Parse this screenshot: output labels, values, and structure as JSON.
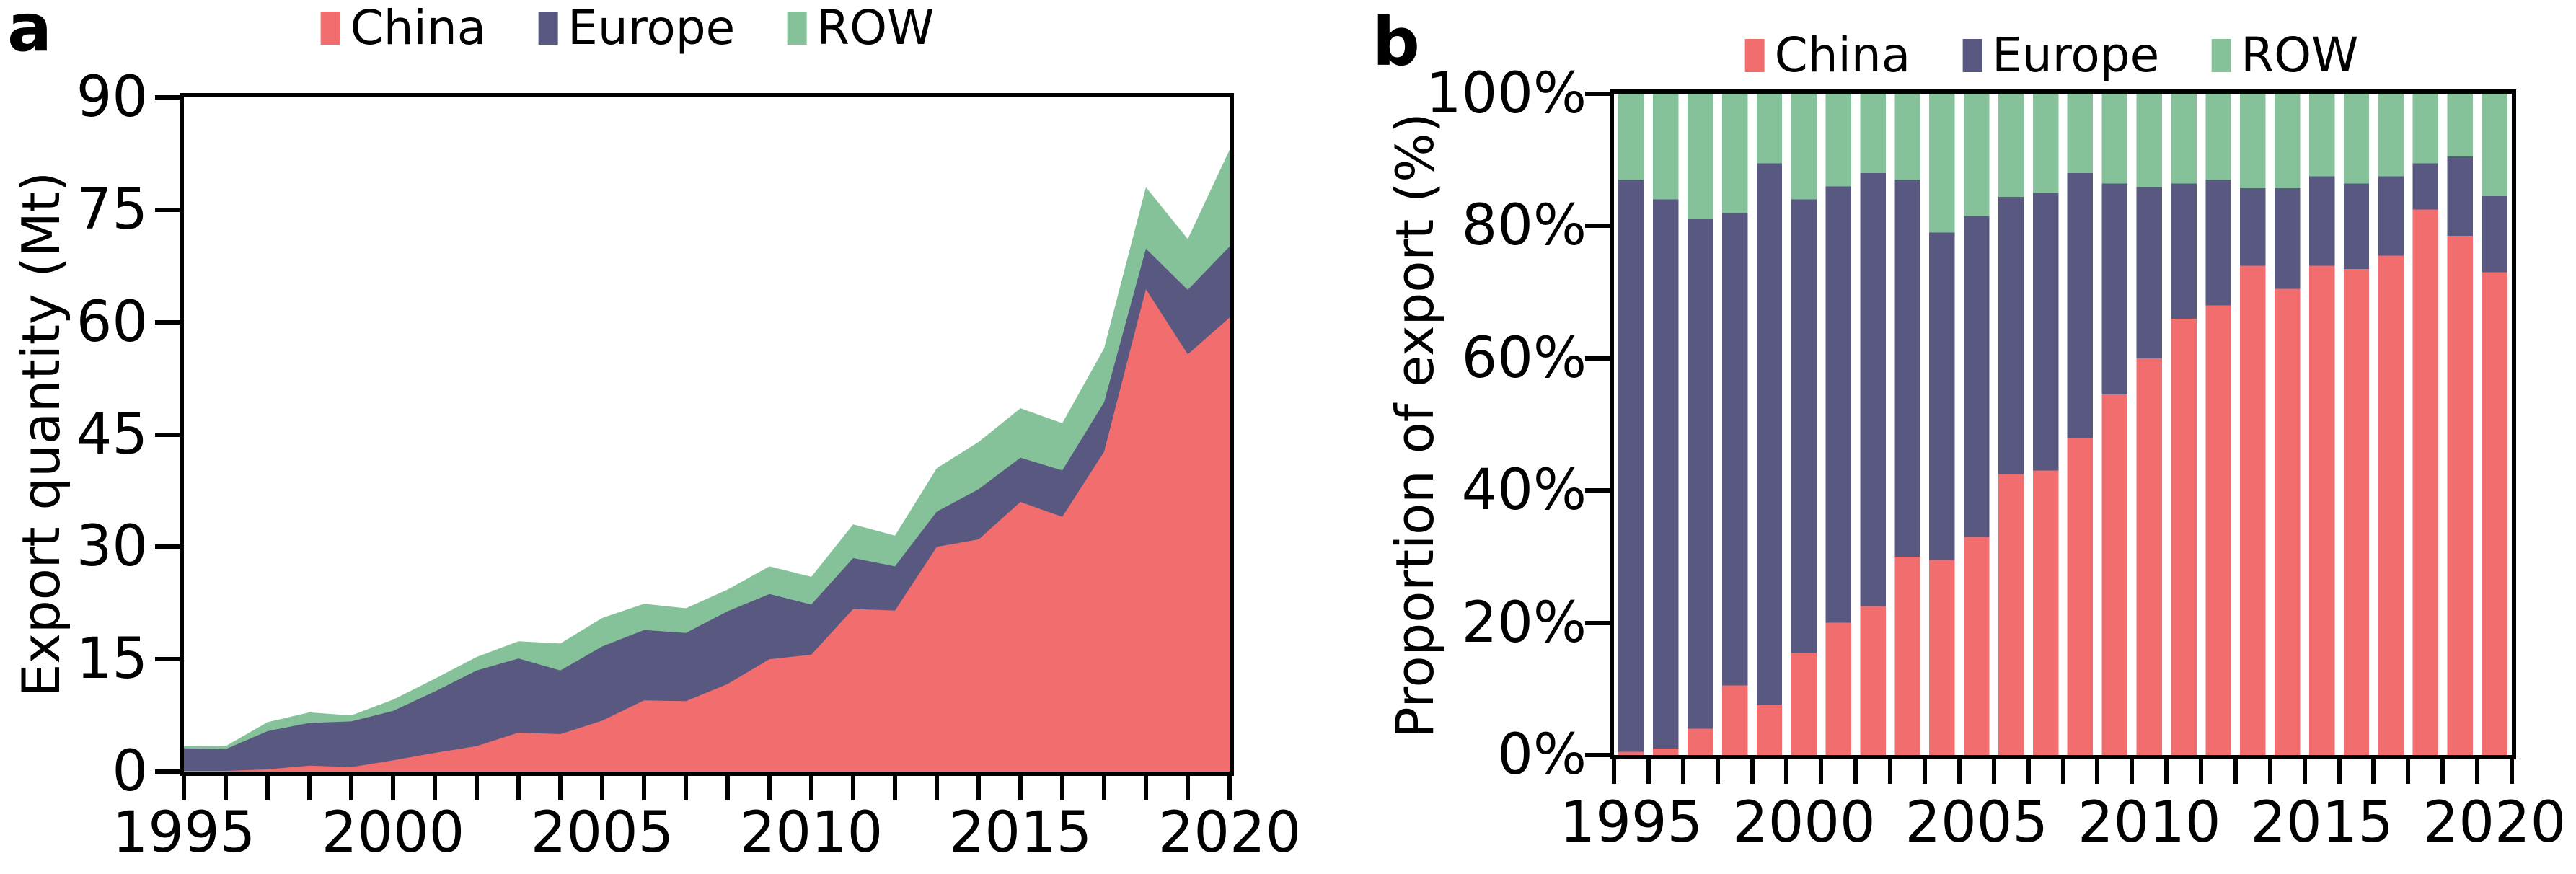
{
  "chart_data": [
    {
      "panel": "a",
      "type": "area",
      "stacked": true,
      "ylabel": "Export quantity (Mt)",
      "x": [
        1995,
        1996,
        1997,
        1998,
        1999,
        2000,
        2001,
        2002,
        2003,
        2004,
        2005,
        2006,
        2007,
        2008,
        2009,
        2010,
        2011,
        2012,
        2013,
        2014,
        2015,
        2016,
        2017,
        2018,
        2019,
        2020
      ],
      "xlim": [
        1995,
        2020
      ],
      "ylim": [
        0,
        90
      ],
      "y_ticks": [
        0,
        15,
        30,
        45,
        60,
        75,
        90
      ],
      "y_tick_labels": [
        "0",
        "15",
        "30",
        "45",
        "60",
        "75",
        "90"
      ],
      "x_tick_label_years": [
        1995,
        2000,
        2005,
        2010,
        2015,
        2020
      ],
      "x_tick_labels": [
        "1995",
        "2000",
        "2005",
        "2010",
        "2015",
        "2020"
      ],
      "grid": false,
      "legend_position": "top",
      "series": [
        {
          "name": "China",
          "color": "#F26E6E",
          "values": [
            0.1,
            0.1,
            0.3,
            0.8,
            0.6,
            1.5,
            2.5,
            3.4,
            5.2,
            5.0,
            6.8,
            9.5,
            9.4,
            11.7,
            15.0,
            15.6,
            21.7,
            21.5,
            30.0,
            31.0,
            36.0,
            34.0,
            42.7,
            64.4,
            55.7,
            60.6
          ]
        },
        {
          "name": "Europe",
          "color": "#585881",
          "values": [
            3.0,
            2.9,
            5.1,
            5.7,
            6.1,
            6.6,
            8.2,
            10.1,
            9.9,
            8.5,
            9.9,
            9.4,
            9.1,
            9.7,
            8.7,
            6.7,
            6.8,
            5.9,
            4.7,
            6.7,
            5.9,
            6.2,
            6.6,
            5.4,
            8.6,
            9.5
          ]
        },
        {
          "name": "ROW",
          "color": "#85C29A",
          "values": [
            0.3,
            0.4,
            1.2,
            1.4,
            0.8,
            1.5,
            1.7,
            1.8,
            2.3,
            3.6,
            3.8,
            3.5,
            3.3,
            2.9,
            3.7,
            3.7,
            4.5,
            4.1,
            5.8,
            6.3,
            6.6,
            6.3,
            7.2,
            8.2,
            6.8,
            12.9
          ]
        }
      ]
    },
    {
      "panel": "b",
      "type": "bar",
      "stacked": true,
      "normalized": true,
      "ylabel": "Proportion of export (%)",
      "x": [
        1995,
        1996,
        1997,
        1998,
        1999,
        2000,
        2001,
        2002,
        2003,
        2004,
        2005,
        2006,
        2007,
        2008,
        2009,
        2010,
        2011,
        2012,
        2013,
        2014,
        2015,
        2016,
        2017,
        2018,
        2019,
        2020
      ],
      "ylim": [
        0,
        100
      ],
      "y_ticks": [
        0,
        20,
        40,
        60,
        80,
        100
      ],
      "y_tick_labels": [
        "0%",
        "20%",
        "40%",
        "60%",
        "80%",
        "100%"
      ],
      "x_tick_label_years": [
        1995,
        2000,
        2005,
        2010,
        2015,
        2020
      ],
      "x_tick_labels": [
        "1995",
        "2000",
        "2005",
        "2010",
        "2015",
        "2020"
      ],
      "grid": false,
      "legend_position": "top",
      "series": [
        {
          "name": "China",
          "color": "#F26E6E",
          "values": [
            0.5,
            1.0,
            4.0,
            10.5,
            7.5,
            15.5,
            20.0,
            22.5,
            30.0,
            29.5,
            33.0,
            42.5,
            43.0,
            48.0,
            54.5,
            60.0,
            66.0,
            68.0,
            74.0,
            70.5,
            74.0,
            73.5,
            75.5,
            82.5,
            78.5,
            73.0
          ]
        },
        {
          "name": "Europe",
          "color": "#585881",
          "values": [
            86.5,
            83.0,
            77.0,
            71.5,
            82.0,
            68.5,
            66.0,
            65.5,
            57.0,
            49.5,
            48.5,
            41.9,
            42.0,
            40.0,
            31.9,
            25.9,
            20.4,
            19.0,
            11.7,
            15.2,
            13.5,
            12.9,
            12.0,
            7.0,
            12.0,
            11.5
          ]
        },
        {
          "name": "ROW",
          "color": "#85C29A",
          "values": [
            13.0,
            16.0,
            19.0,
            18.0,
            10.5,
            16.0,
            14.0,
            12.0,
            13.0,
            21.0,
            18.5,
            15.6,
            15.0,
            12.0,
            13.6,
            14.1,
            13.6,
            13.0,
            14.3,
            14.3,
            12.5,
            13.6,
            12.5,
            10.5,
            9.5,
            15.5
          ]
        }
      ]
    }
  ]
}
